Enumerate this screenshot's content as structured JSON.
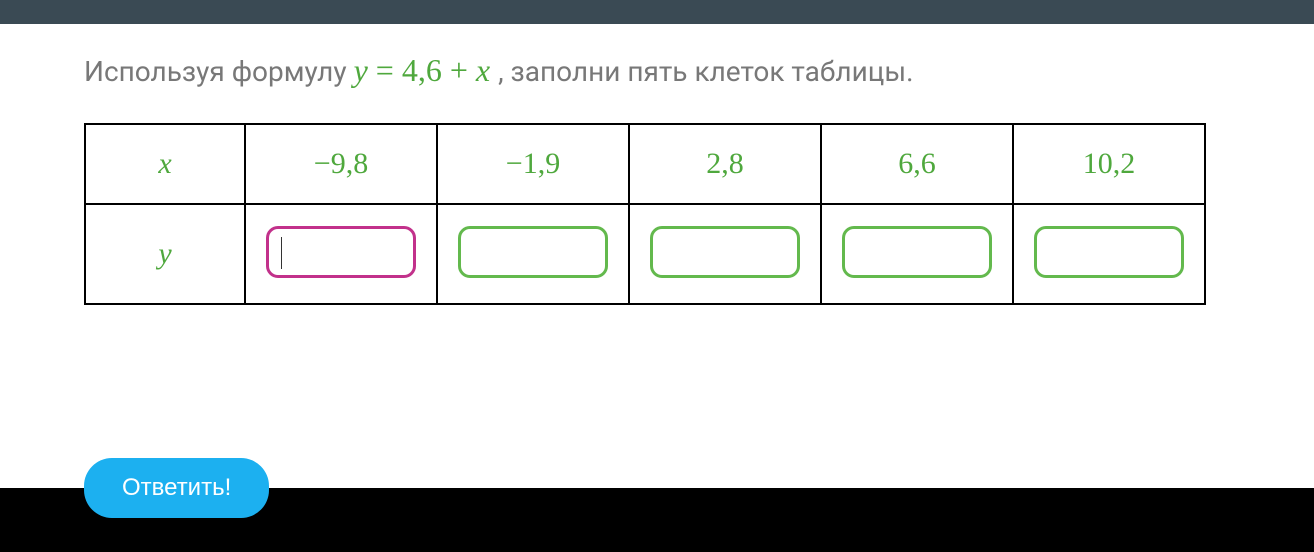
{
  "prompt_before": "Используя формулу ",
  "prompt_after": ", заполни пять клеток таблицы.",
  "formula": {
    "lhs": "y",
    "eq": " = ",
    "rhs_num": "4,6",
    "rhs_op": " + ",
    "rhs_var": "x"
  },
  "row_labels": {
    "x": "x",
    "y": "y"
  },
  "x_values": [
    "−9,8",
    "−1,9",
    "2,8",
    "6,6",
    "10,2"
  ],
  "y_values": [
    "",
    "",
    "",
    "",
    ""
  ],
  "active_input_index": 0,
  "submit_label": "Ответить!",
  "colors": {
    "topbar": "#3a4a54",
    "text_muted": "#787878",
    "accent_green": "#4fa83d",
    "box_green": "#63b94d",
    "box_active": "#c2318b",
    "button": "#1cb0f0",
    "page_bg": "#ffffff",
    "outer_bg": "#000000",
    "border": "#000000"
  }
}
